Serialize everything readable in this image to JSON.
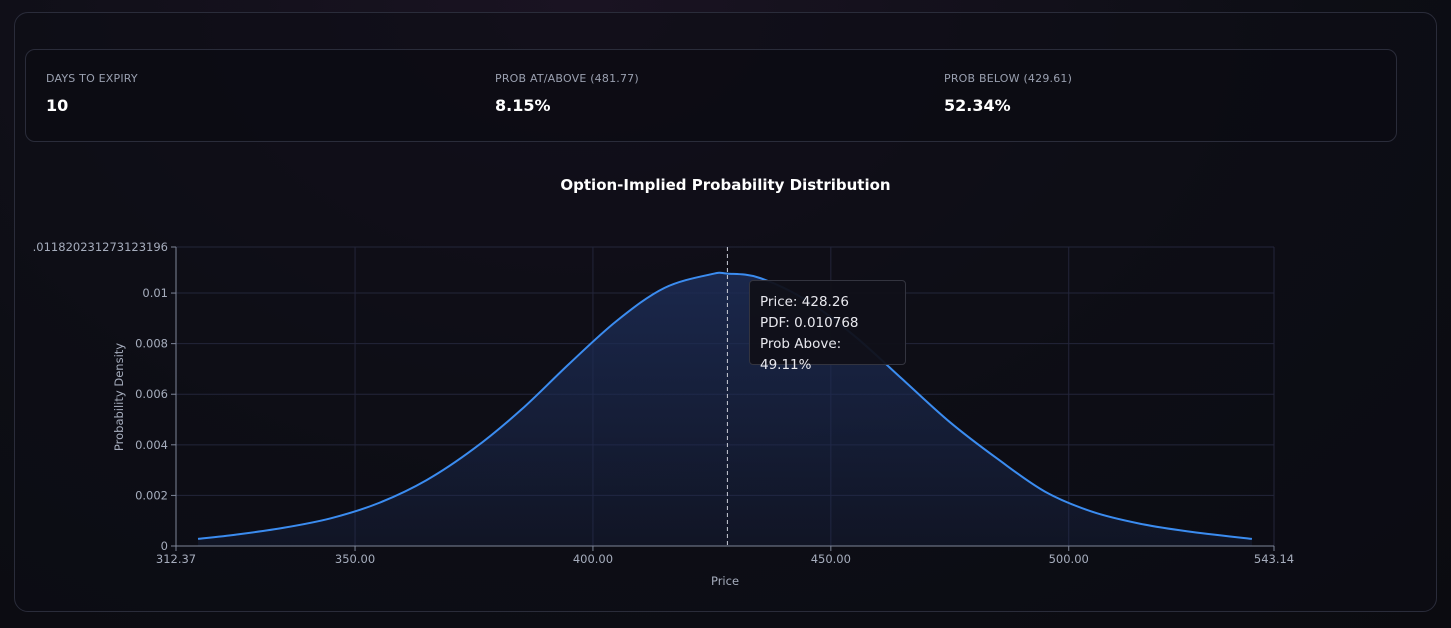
{
  "stats": [
    {
      "label": "DAYS TO EXPIRY",
      "value": "10"
    },
    {
      "label": "PROB AT/ABOVE (481.77)",
      "value": "8.15%"
    },
    {
      "label": "PROB BELOW (429.61)",
      "value": "52.34%"
    }
  ],
  "tooltip": {
    "price": "Price: 428.26",
    "pdf": "PDF: 0.010768",
    "prob_above": "Prob Above: 49.11%"
  },
  "colors": {
    "line": "#3b8cf0",
    "accent_fill": "#1c2c55",
    "grid": "#23253a"
  },
  "chart_data": {
    "type": "area",
    "title": "Option-Implied Probability Distribution",
    "xlabel": "Price",
    "ylabel": "Probability Density",
    "xlim": [
      312.37,
      543.14
    ],
    "ylim": [
      0,
      0.011820231273123196
    ],
    "xticks": [
      "312.37",
      "350.00",
      "400.00",
      "450.00",
      "500.00",
      "543.14"
    ],
    "xtick_values": [
      312.37,
      350,
      400,
      450,
      500,
      543.14
    ],
    "yticks": [
      "0",
      "0.002",
      "0.004",
      "0.006",
      "0.008",
      "0.01",
      ".011820231273123196"
    ],
    "ytick_values": [
      0,
      0.002,
      0.004,
      0.006,
      0.008,
      0.01,
      0.011820231273123196
    ],
    "grid": true,
    "hover_x": 428.26,
    "x": [
      317,
      325,
      335,
      345,
      355,
      365,
      375,
      385,
      395,
      405,
      415,
      425,
      428.26,
      435,
      445,
      455,
      465,
      475,
      485,
      495,
      505,
      515,
      525,
      538.5
    ],
    "y": [
      0.00028,
      0.00045,
      0.00072,
      0.0011,
      0.0017,
      0.0026,
      0.00385,
      0.0054,
      0.0072,
      0.0089,
      0.0102,
      0.01075,
      0.010768,
      0.0106,
      0.0097,
      0.0083,
      0.0066,
      0.0049,
      0.00345,
      0.00215,
      0.00135,
      0.00088,
      0.00058,
      0.00028
    ]
  }
}
